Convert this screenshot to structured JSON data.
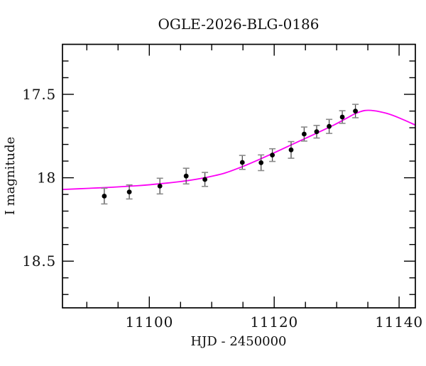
{
  "chart_data": {
    "type": "scatter",
    "title": "OGLE-2026-BLG-0186",
    "xlabel": "HJD - 2450000",
    "ylabel": "I magnitude",
    "xlim": [
      11086.1,
      11142.6
    ],
    "ylim": [
      17.2,
      18.78
    ],
    "y_axis_inverted": true,
    "grid": false,
    "legend": "none",
    "x_ticks_major": [
      11100,
      11120,
      11140
    ],
    "x_tick_labels": [
      "11100",
      "11120",
      "11140"
    ],
    "x_ticks_minor": [
      11090,
      11095,
      11105,
      11110,
      11115,
      11125,
      11130,
      11135
    ],
    "y_ticks_major": [
      17.5,
      18.0,
      18.5
    ],
    "y_tick_labels": [
      "17.5",
      "18",
      "18.5"
    ],
    "y_ticks_minor": [
      17.3,
      17.4,
      17.6,
      17.7,
      17.8,
      17.9,
      18.1,
      18.2,
      18.3,
      18.4,
      18.6,
      18.7
    ],
    "points": [
      {
        "hjd": 11092.8,
        "mag": 18.11,
        "err": 0.047
      },
      {
        "hjd": 11096.8,
        "mag": 18.085,
        "err": 0.042
      },
      {
        "hjd": 11101.7,
        "mag": 18.05,
        "err": 0.047
      },
      {
        "hjd": 11105.9,
        "mag": 17.99,
        "err": 0.047
      },
      {
        "hjd": 11108.9,
        "mag": 18.01,
        "err": 0.042
      },
      {
        "hjd": 11114.9,
        "mag": 17.908,
        "err": 0.042
      },
      {
        "hjd": 11117.9,
        "mag": 17.91,
        "err": 0.047
      },
      {
        "hjd": 11119.7,
        "mag": 17.864,
        "err": 0.038
      },
      {
        "hjd": 11122.7,
        "mag": 17.833,
        "err": 0.05
      },
      {
        "hjd": 11124.8,
        "mag": 17.738,
        "err": 0.042
      },
      {
        "hjd": 11126.8,
        "mag": 17.724,
        "err": 0.038
      },
      {
        "hjd": 11128.8,
        "mag": 17.692,
        "err": 0.042
      },
      {
        "hjd": 11130.9,
        "mag": 17.636,
        "err": 0.038
      },
      {
        "hjd": 11133.0,
        "mag": 17.6,
        "err": 0.04
      }
    ],
    "model_curve": [
      [
        11086.1,
        18.07
      ],
      [
        11090.0,
        18.064
      ],
      [
        11094.0,
        18.057
      ],
      [
        11098.0,
        18.048
      ],
      [
        11102.0,
        18.035
      ],
      [
        11106.0,
        18.018
      ],
      [
        11109.0,
        17.999
      ],
      [
        11112.0,
        17.973
      ],
      [
        11115.0,
        17.932
      ],
      [
        11118.0,
        17.884
      ],
      [
        11121.0,
        17.833
      ],
      [
        11124.0,
        17.781
      ],
      [
        11127.0,
        17.729
      ],
      [
        11129.5,
        17.685
      ],
      [
        11131.5,
        17.645
      ],
      [
        11133.0,
        17.615
      ],
      [
        11134.5,
        17.597
      ],
      [
        11136.0,
        17.598
      ],
      [
        11138.0,
        17.614
      ],
      [
        11140.0,
        17.641
      ],
      [
        11142.6,
        17.684
      ]
    ],
    "colors": {
      "curve": "#fb00f5",
      "marker": "#000000",
      "errorbar_stem": "#4a4a4a",
      "errorbar_cap": "#8a8a8a",
      "frame": "#000000",
      "background": "#ffffff"
    }
  }
}
